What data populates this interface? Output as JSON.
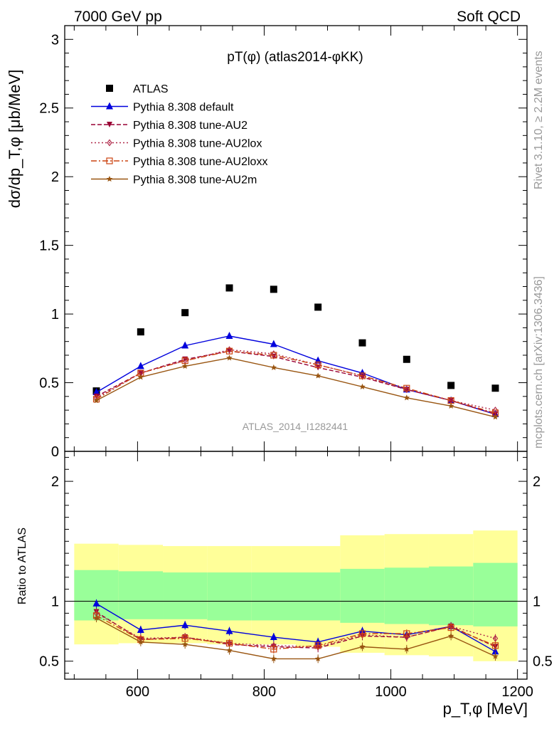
{
  "header": {
    "left": "7000 GeV pp",
    "right": "Soft QCD"
  },
  "side_labels": {
    "rivet": "Rivet 3.1.10, ≥ 2.2M events",
    "mcplots": "mcplots.cern.ch [arXiv:1306.3436]"
  },
  "colors": {
    "ATLAS": "#000000",
    "Pythia 8.308 default": "#0000dd",
    "Pythia 8.308 tune-AU2": "#990033",
    "Pythia 8.308 tune-AU2lox": "#b02a4a",
    "Pythia 8.308 tune-AU2loxx": "#cc4411",
    "Pythia 8.308 tune-AU2m": "#995511",
    "band_inner": "#99ff99",
    "band_outer": "#ffff99"
  },
  "chart_data": [
    {
      "type": "scatter",
      "panel": "main",
      "title": "pT(φ) (atlas2014-φKK)",
      "ylabel": "dσ/dp_T,φ [μb/MeV]",
      "watermark": "ATLAS_2014_I1282441",
      "xlim": [
        485,
        1215
      ],
      "ylim": [
        0,
        3.1
      ],
      "y_ticks": [
        "0",
        "0.5",
        "1",
        "1.5",
        "2",
        "2.5",
        "3"
      ],
      "legend_position": "top-left",
      "x": [
        535,
        605,
        675,
        745,
        815,
        885,
        955,
        1025,
        1095,
        1165
      ],
      "series": [
        {
          "name": "ATLAS",
          "style": "data",
          "values": [
            0.44,
            0.87,
            1.01,
            1.19,
            1.18,
            1.05,
            0.79,
            0.67,
            0.48,
            0.46
          ]
        },
        {
          "name": "Pythia 8.308 default",
          "style": "solid",
          "marker": "triangle",
          "values": [
            0.43,
            0.62,
            0.77,
            0.84,
            0.78,
            0.66,
            0.57,
            0.45,
            0.37,
            0.27
          ]
        },
        {
          "name": "Pythia 8.308 tune-AU2",
          "style": "dashed",
          "marker": "triangle-down",
          "values": [
            0.4,
            0.57,
            0.67,
            0.73,
            0.69,
            0.61,
            0.54,
            0.45,
            0.37,
            0.27
          ]
        },
        {
          "name": "Pythia 8.308 tune-AU2lox",
          "style": "dotted",
          "marker": "diamond",
          "values": [
            0.39,
            0.57,
            0.66,
            0.74,
            0.71,
            0.63,
            0.55,
            0.45,
            0.37,
            0.3
          ]
        },
        {
          "name": "Pythia 8.308 tune-AU2loxx",
          "style": "dashdot",
          "marker": "square",
          "values": [
            0.38,
            0.57,
            0.66,
            0.73,
            0.7,
            0.63,
            0.55,
            0.46,
            0.37,
            0.28
          ]
        },
        {
          "name": "Pythia 8.308 tune-AU2m",
          "style": "solid",
          "marker": "star",
          "values": [
            0.37,
            0.54,
            0.62,
            0.68,
            0.61,
            0.55,
            0.47,
            0.39,
            0.33,
            0.25
          ]
        }
      ]
    },
    {
      "type": "line",
      "panel": "ratio",
      "ylabel": "Ratio to ATLAS",
      "xlabel": "p_T,φ [MeV]",
      "xlim": [
        485,
        1215
      ],
      "ylim": [
        0.35,
        2.25
      ],
      "x_ticks": [
        "600",
        "800",
        "1000",
        "1200"
      ],
      "y_ticks": [
        "0.5",
        "1",
        "2"
      ],
      "x": [
        535,
        605,
        675,
        745,
        815,
        885,
        955,
        1025,
        1095,
        1165
      ],
      "bin_edges": [
        500,
        570,
        640,
        710,
        780,
        850,
        920,
        990,
        1060,
        1130,
        1200
      ],
      "band_inner": {
        "lo": [
          0.84,
          0.85,
          0.85,
          0.84,
          0.84,
          0.84,
          0.82,
          0.81,
          0.8,
          0.79
        ],
        "hi": [
          1.26,
          1.25,
          1.24,
          1.24,
          1.24,
          1.24,
          1.27,
          1.28,
          1.29,
          1.32
        ]
      },
      "band_outer": {
        "lo": [
          0.64,
          0.65,
          0.65,
          0.64,
          0.64,
          0.62,
          0.57,
          0.55,
          0.54,
          0.5
        ],
        "hi": [
          1.48,
          1.47,
          1.46,
          1.46,
          1.46,
          1.46,
          1.55,
          1.56,
          1.56,
          1.59
        ]
      },
      "series": [
        {
          "name": "Pythia 8.308 default",
          "values": [
            0.98,
            0.76,
            0.8,
            0.75,
            0.7,
            0.66,
            0.75,
            0.72,
            0.79,
            0.58
          ]
        },
        {
          "name": "Pythia 8.308 tune-AU2",
          "values": [
            0.91,
            0.68,
            0.7,
            0.64,
            0.62,
            0.61,
            0.71,
            0.7,
            0.79,
            0.62
          ]
        },
        {
          "name": "Pythia 8.308 tune-AU2lox",
          "values": [
            0.9,
            0.69,
            0.7,
            0.65,
            0.63,
            0.62,
            0.72,
            0.7,
            0.79,
            0.69
          ]
        },
        {
          "name": "Pythia 8.308 tune-AU2loxx",
          "values": [
            0.88,
            0.68,
            0.69,
            0.65,
            0.6,
            0.63,
            0.73,
            0.73,
            0.78,
            0.63
          ]
        },
        {
          "name": "Pythia 8.308 tune-AU2m",
          "values": [
            0.86,
            0.66,
            0.64,
            0.59,
            0.52,
            0.52,
            0.62,
            0.6,
            0.71,
            0.54
          ]
        }
      ]
    }
  ]
}
